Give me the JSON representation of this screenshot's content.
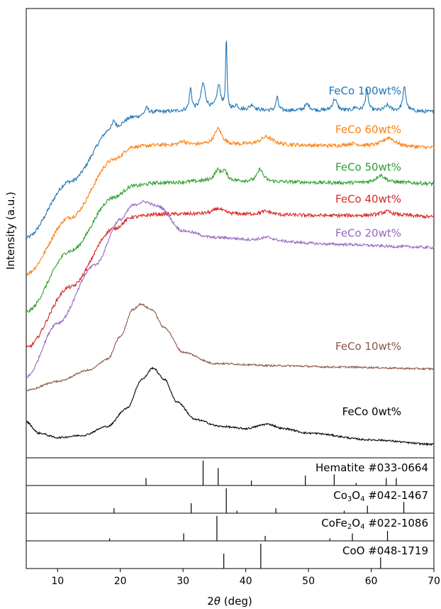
{
  "chart_data": {
    "type": "line",
    "xlabel_prefix": "2",
    "xlabel_italic": "θ",
    "xlabel_suffix": " (deg)",
    "ylabel": "Intensity (a.u.)",
    "xlim": [
      5,
      70
    ],
    "x_ticks": [
      10,
      20,
      30,
      40,
      50,
      60,
      70
    ],
    "y_ticks_shown": false,
    "grid": false,
    "series": [
      {
        "name": "FeCo 100wt%",
        "color": "#1f77b4",
        "offset": 0.88,
        "noise": 0.004,
        "points": [
          [
            5,
            0.49
          ],
          [
            12,
            0.615
          ],
          [
            19,
            0.735
          ],
          [
            22,
            0.758
          ],
          [
            26,
            0.77
          ],
          [
            35,
            0.775
          ],
          [
            45,
            0.773
          ],
          [
            55,
            0.772
          ],
          [
            65,
            0.772
          ],
          [
            70,
            0.77
          ]
        ],
        "peaks": [
          [
            19,
            0.016,
            0.25
          ],
          [
            24.2,
            0.014,
            0.35
          ],
          [
            31.2,
            0.048,
            0.22
          ],
          [
            33.2,
            0.058,
            0.42
          ],
          [
            35.7,
            0.052,
            0.38
          ],
          [
            36.9,
            0.165,
            0.12
          ],
          [
            38.5,
            0.01,
            0.3
          ],
          [
            41,
            0.012,
            0.45
          ],
          [
            45,
            0.03,
            0.22
          ],
          [
            49.8,
            0.014,
            0.5
          ],
          [
            54.2,
            0.026,
            0.45
          ],
          [
            57.5,
            0.007,
            0.4
          ],
          [
            59.3,
            0.045,
            0.28
          ],
          [
            62.6,
            0.012,
            0.5
          ],
          [
            65.3,
            0.052,
            0.3
          ]
        ],
        "label_x": 64.8,
        "label_y": 0.809
      },
      {
        "name": "FeCo 60wt%",
        "color": "#ff7f0e",
        "offset": 0.74,
        "noise": 0.004,
        "points": [
          [
            5,
            0.41
          ],
          [
            12,
            0.535
          ],
          [
            19,
            0.664
          ],
          [
            22,
            0.692
          ],
          [
            26,
            0.696
          ],
          [
            35,
            0.697
          ],
          [
            45,
            0.696
          ],
          [
            55,
            0.694
          ],
          [
            65,
            0.692
          ],
          [
            70,
            0.69
          ]
        ],
        "peaks": [
          [
            30,
            0.008,
            0.6
          ],
          [
            35.6,
            0.035,
            0.7
          ],
          [
            43.3,
            0.018,
            1.2
          ],
          [
            57,
            0.005,
            1
          ],
          [
            62.8,
            0.02,
            1.2
          ]
        ],
        "label_x": 64.8,
        "label_y": 0.723
      },
      {
        "name": "FeCo 50wt%",
        "color": "#2ca02c",
        "offset": 0.61,
        "noise": 0.004,
        "points": [
          [
            5,
            0.325
          ],
          [
            12,
            0.46
          ],
          [
            19,
            0.58
          ],
          [
            22,
            0.605
          ],
          [
            26,
            0.612
          ],
          [
            35,
            0.616
          ],
          [
            45,
            0.614
          ],
          [
            55,
            0.612
          ],
          [
            65,
            0.612
          ],
          [
            70,
            0.61
          ]
        ],
        "peaks": [
          [
            35.5,
            0.022,
            0.6
          ],
          [
            36.6,
            0.02,
            0.5
          ],
          [
            42.3,
            0.028,
            0.55
          ],
          [
            61.5,
            0.017,
            0.9
          ]
        ],
        "label_x": 64.8,
        "label_y": 0.639
      },
      {
        "name": "FeCo 40wt%",
        "color": "#d62728",
        "offset": 0.54,
        "noise": 0.004,
        "points": [
          [
            5,
            0.245
          ],
          [
            12,
            0.38
          ],
          [
            19,
            0.51
          ],
          [
            22,
            0.536
          ],
          [
            26,
            0.542
          ],
          [
            35,
            0.543
          ],
          [
            45,
            0.54
          ],
          [
            55,
            0.539
          ],
          [
            65,
            0.539
          ],
          [
            70,
            0.536
          ]
        ],
        "peaks": [
          [
            35.6,
            0.012,
            0.9
          ],
          [
            43.2,
            0.008,
            1.2
          ],
          [
            62.5,
            0.009,
            1.2
          ]
        ],
        "label_x": 64.8,
        "label_y": 0.568
      },
      {
        "name": "FeCo 20wt%",
        "color": "#9467bd",
        "offset": 0.46,
        "noise": 0.003,
        "points": [
          [
            5,
            0.18
          ],
          [
            10,
            0.3
          ],
          [
            16,
            0.43
          ],
          [
            20,
            0.53
          ],
          [
            22,
            0.562
          ],
          [
            23.8,
            0.57
          ],
          [
            26,
            0.56
          ],
          [
            30,
            0.505
          ],
          [
            35,
            0.49
          ],
          [
            45,
            0.48
          ],
          [
            55,
            0.475
          ],
          [
            65,
            0.47
          ],
          [
            70,
            0.468
          ]
        ],
        "peaks": [
          [
            43.5,
            0.01,
            1.5
          ]
        ],
        "label_x": 64.8,
        "label_y": 0.492
      },
      {
        "name": "FeCo 10wt%",
        "color": "#8c564b",
        "offset": 0.2,
        "noise": 0.002,
        "points": [
          [
            5,
            0.15
          ],
          [
            10,
            0.17
          ],
          [
            15,
            0.195
          ],
          [
            18,
            0.22
          ],
          [
            20,
            0.27
          ],
          [
            22,
            0.33
          ],
          [
            23.2,
            0.342
          ],
          [
            25,
            0.33
          ],
          [
            27,
            0.29
          ],
          [
            30,
            0.235
          ],
          [
            35,
            0.21
          ],
          [
            45,
            0.205
          ],
          [
            55,
            0.202
          ],
          [
            70,
            0.198
          ]
        ],
        "peaks": [],
        "label_x": 64.8,
        "label_y": 0.24
      },
      {
        "name": "FeCo 0wt%",
        "color": "#000000",
        "offset": 0.0,
        "noise": 0.002,
        "points": [
          [
            5,
            0.08
          ],
          [
            7,
            0.055
          ],
          [
            10,
            0.045
          ],
          [
            14,
            0.05
          ],
          [
            18,
            0.07
          ],
          [
            21,
            0.11
          ],
          [
            23.5,
            0.175
          ],
          [
            25.2,
            0.2
          ],
          [
            27,
            0.175
          ],
          [
            29,
            0.125
          ],
          [
            32,
            0.085
          ],
          [
            36,
            0.07
          ],
          [
            40,
            0.065
          ],
          [
            43.5,
            0.075
          ],
          [
            46,
            0.065
          ],
          [
            50,
            0.055
          ],
          [
            60,
            0.04
          ],
          [
            70,
            0.03
          ]
        ],
        "peaks": [],
        "label_x": 64.8,
        "label_y": 0.095
      }
    ],
    "references": [
      {
        "label": "Hematite #033-0664",
        "label_html": "Hematite #033-0664",
        "lines": [
          [
            24.1,
            0.3
          ],
          [
            33.2,
            1.0
          ],
          [
            35.6,
            0.7
          ],
          [
            40.9,
            0.2
          ],
          [
            49.5,
            0.4
          ],
          [
            54.1,
            0.45
          ],
          [
            57.6,
            0.1
          ],
          [
            62.4,
            0.3
          ],
          [
            64,
            0.3
          ]
        ]
      },
      {
        "label": "Co3O4 #042-1467",
        "label_parts": [
          "Co",
          "3",
          "O",
          "4",
          " #042-1467"
        ],
        "lines": [
          [
            19,
            0.2
          ],
          [
            31.3,
            0.4
          ],
          [
            36.9,
            1.0
          ],
          [
            38.6,
            0.1
          ],
          [
            44.8,
            0.2
          ],
          [
            55.7,
            0.1
          ],
          [
            59.4,
            0.3
          ],
          [
            65.2,
            0.45
          ]
        ]
      },
      {
        "label": "CoFe2O4 #022-1086",
        "label_parts": [
          "CoFe",
          "2",
          "O",
          "4",
          " #022-1086"
        ],
        "lines": [
          [
            18.3,
            0.1
          ],
          [
            30.1,
            0.3
          ],
          [
            35.4,
            1.0
          ],
          [
            43.1,
            0.2
          ],
          [
            53.4,
            0.1
          ],
          [
            57,
            0.3
          ],
          [
            62.6,
            0.4
          ]
        ]
      },
      {
        "label": "CoO #048-1719",
        "label_html": "CoO #048-1719",
        "lines": [
          [
            36.5,
            0.6
          ],
          [
            42.4,
            1.0
          ],
          [
            61.5,
            0.45
          ]
        ]
      }
    ]
  }
}
